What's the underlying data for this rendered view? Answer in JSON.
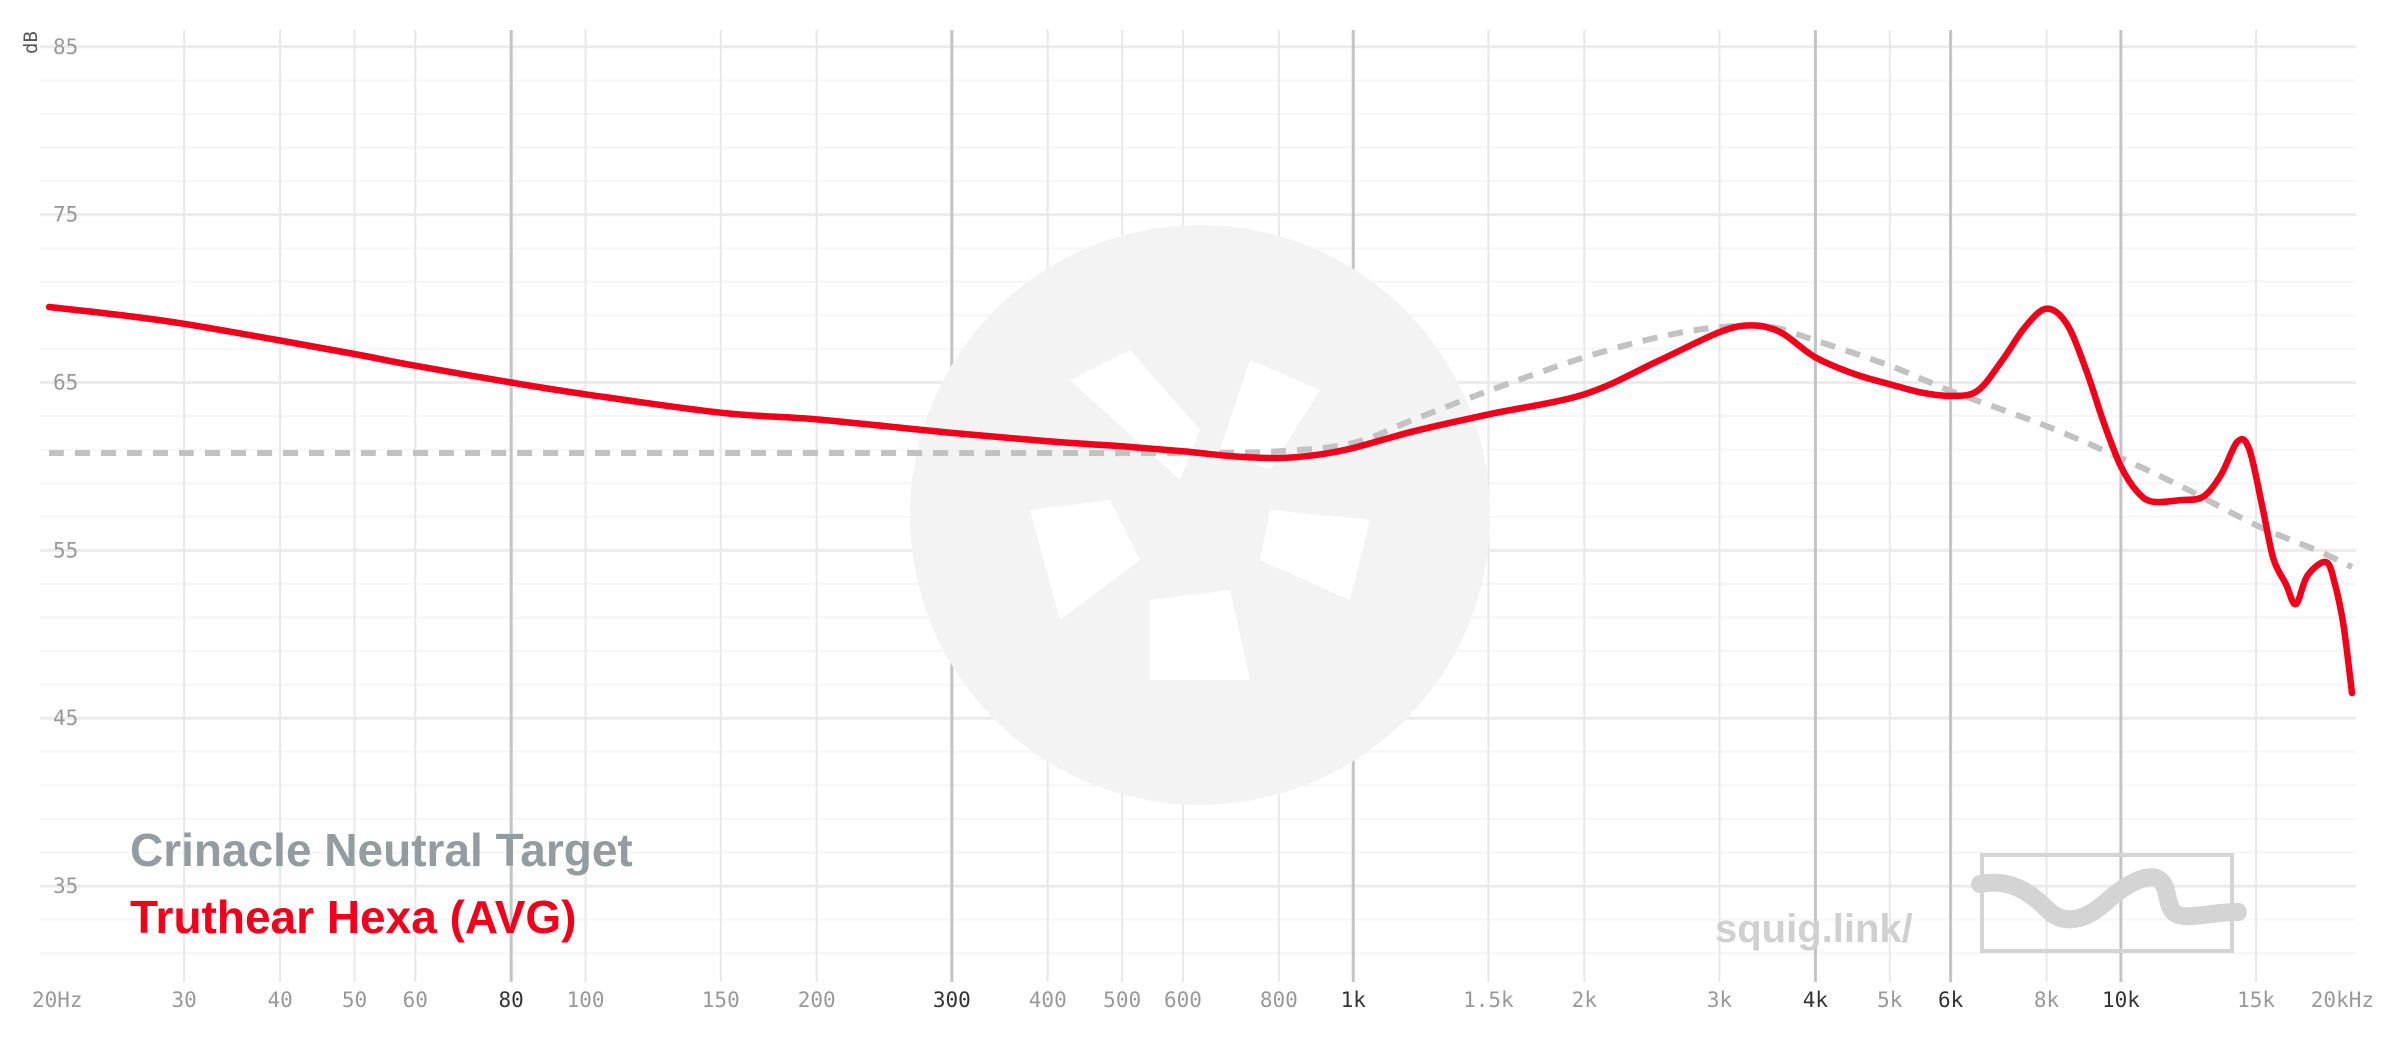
{
  "chart_data": {
    "type": "line",
    "y_unit": "dB",
    "xscale": "log",
    "xlim": [
      20,
      20000
    ],
    "ylim": [
      30,
      86
    ],
    "y_ticks": [
      {
        "value": 85,
        "label": "85"
      },
      {
        "value": 75,
        "label": "75"
      },
      {
        "value": 65,
        "label": "65"
      },
      {
        "value": 55,
        "label": "55"
      },
      {
        "value": 45,
        "label": "45"
      },
      {
        "value": 35,
        "label": "35"
      }
    ],
    "y_minor_grid": [
      83,
      81,
      79,
      77,
      73,
      71,
      69,
      67,
      63,
      61,
      59,
      57,
      53,
      51,
      49,
      47,
      43,
      41,
      39,
      37,
      33,
      31
    ],
    "x_ticks": [
      {
        "value": 20,
        "label": "20Hz",
        "major": false
      },
      {
        "value": 30,
        "label": "30",
        "major": false
      },
      {
        "value": 40,
        "label": "40",
        "major": false
      },
      {
        "value": 50,
        "label": "50",
        "major": false
      },
      {
        "value": 60,
        "label": "60",
        "major": false
      },
      {
        "value": 80,
        "label": "80",
        "major": true
      },
      {
        "value": 100,
        "label": "100",
        "major": false
      },
      {
        "value": 150,
        "label": "150",
        "major": false
      },
      {
        "value": 200,
        "label": "200",
        "major": false
      },
      {
        "value": 300,
        "label": "300",
        "major": true
      },
      {
        "value": 400,
        "label": "400",
        "major": false
      },
      {
        "value": 500,
        "label": "500",
        "major": false
      },
      {
        "value": 600,
        "label": "600",
        "major": false
      },
      {
        "value": 800,
        "label": "800",
        "major": false
      },
      {
        "value": 1000,
        "label": "1k",
        "major": true
      },
      {
        "value": 1500,
        "label": "1.5k",
        "major": false
      },
      {
        "value": 2000,
        "label": "2k",
        "major": false
      },
      {
        "value": 3000,
        "label": "3k",
        "major": false
      },
      {
        "value": 4000,
        "label": "4k",
        "major": true
      },
      {
        "value": 5000,
        "label": "5k",
        "major": false
      },
      {
        "value": 6000,
        "label": "6k",
        "major": true
      },
      {
        "value": 8000,
        "label": "8k",
        "major": false
      },
      {
        "value": 10000,
        "label": "10k",
        "major": true
      },
      {
        "value": 15000,
        "label": "15k",
        "major": false
      },
      {
        "value": 20000,
        "label": "20kHz",
        "major": false
      }
    ],
    "series": [
      {
        "name": "Crinacle Neutral Target",
        "color": "#c2c2c2",
        "style": "dashed",
        "points": [
          [
            20,
            60.8
          ],
          [
            40,
            60.8
          ],
          [
            100,
            60.8
          ],
          [
            200,
            60.8
          ],
          [
            400,
            60.8
          ],
          [
            600,
            60.8
          ],
          [
            800,
            60.9
          ],
          [
            1000,
            61.4
          ],
          [
            1200,
            62.8
          ],
          [
            1500,
            64.5
          ],
          [
            2000,
            66.5
          ],
          [
            2500,
            67.7
          ],
          [
            3000,
            68.3
          ],
          [
            3500,
            68.3
          ],
          [
            4000,
            67.5
          ],
          [
            5000,
            66.0
          ],
          [
            6000,
            64.5
          ],
          [
            8000,
            62.4
          ],
          [
            10000,
            60.5
          ],
          [
            12000,
            58.8
          ],
          [
            15000,
            56.5
          ],
          [
            18000,
            55.0
          ],
          [
            20000,
            54.0
          ]
        ]
      },
      {
        "name": "Truthear Hexa (AVG)",
        "color": "#f0001b",
        "style": "solid",
        "points": [
          [
            20,
            69.5
          ],
          [
            25,
            69.0
          ],
          [
            30,
            68.5
          ],
          [
            40,
            67.5
          ],
          [
            50,
            66.7
          ],
          [
            60,
            66.0
          ],
          [
            80,
            65.0
          ],
          [
            100,
            64.3
          ],
          [
            150,
            63.2
          ],
          [
            200,
            62.8
          ],
          [
            300,
            62.0
          ],
          [
            400,
            61.5
          ],
          [
            500,
            61.2
          ],
          [
            600,
            60.9
          ],
          [
            700,
            60.6
          ],
          [
            800,
            60.5
          ],
          [
            900,
            60.7
          ],
          [
            1000,
            61.1
          ],
          [
            1200,
            62.1
          ],
          [
            1500,
            63.1
          ],
          [
            2000,
            64.3
          ],
          [
            2500,
            66.3
          ],
          [
            3000,
            68.0
          ],
          [
            3300,
            68.4
          ],
          [
            3600,
            68.0
          ],
          [
            4000,
            66.5
          ],
          [
            4500,
            65.5
          ],
          [
            5000,
            64.9
          ],
          [
            5500,
            64.4
          ],
          [
            6000,
            64.2
          ],
          [
            6500,
            64.5
          ],
          [
            7000,
            66.3
          ],
          [
            7500,
            68.3
          ],
          [
            8000,
            69.4
          ],
          [
            8500,
            68.5
          ],
          [
            9000,
            65.8
          ],
          [
            9500,
            62.6
          ],
          [
            10000,
            60.0
          ],
          [
            10500,
            58.5
          ],
          [
            11000,
            57.9
          ],
          [
            12000,
            58.0
          ],
          [
            12800,
            58.2
          ],
          [
            13500,
            59.5
          ],
          [
            14200,
            61.5
          ],
          [
            14700,
            61.0
          ],
          [
            15300,
            57.5
          ],
          [
            15800,
            54.5
          ],
          [
            16400,
            53.0
          ],
          [
            16900,
            51.8
          ],
          [
            17500,
            53.5
          ],
          [
            18500,
            54.3
          ],
          [
            19000,
            53.0
          ],
          [
            19500,
            50.5
          ],
          [
            20000,
            46.5
          ]
        ]
      }
    ],
    "legend": {
      "placement": "bottom-left",
      "items": [
        {
          "label": "Crinacle Neutral Target",
          "color": "#939ca1"
        },
        {
          "label": "Truthear Hexa (AVG)",
          "color": "#f0001b"
        }
      ]
    },
    "brand": "squig.link/"
  }
}
